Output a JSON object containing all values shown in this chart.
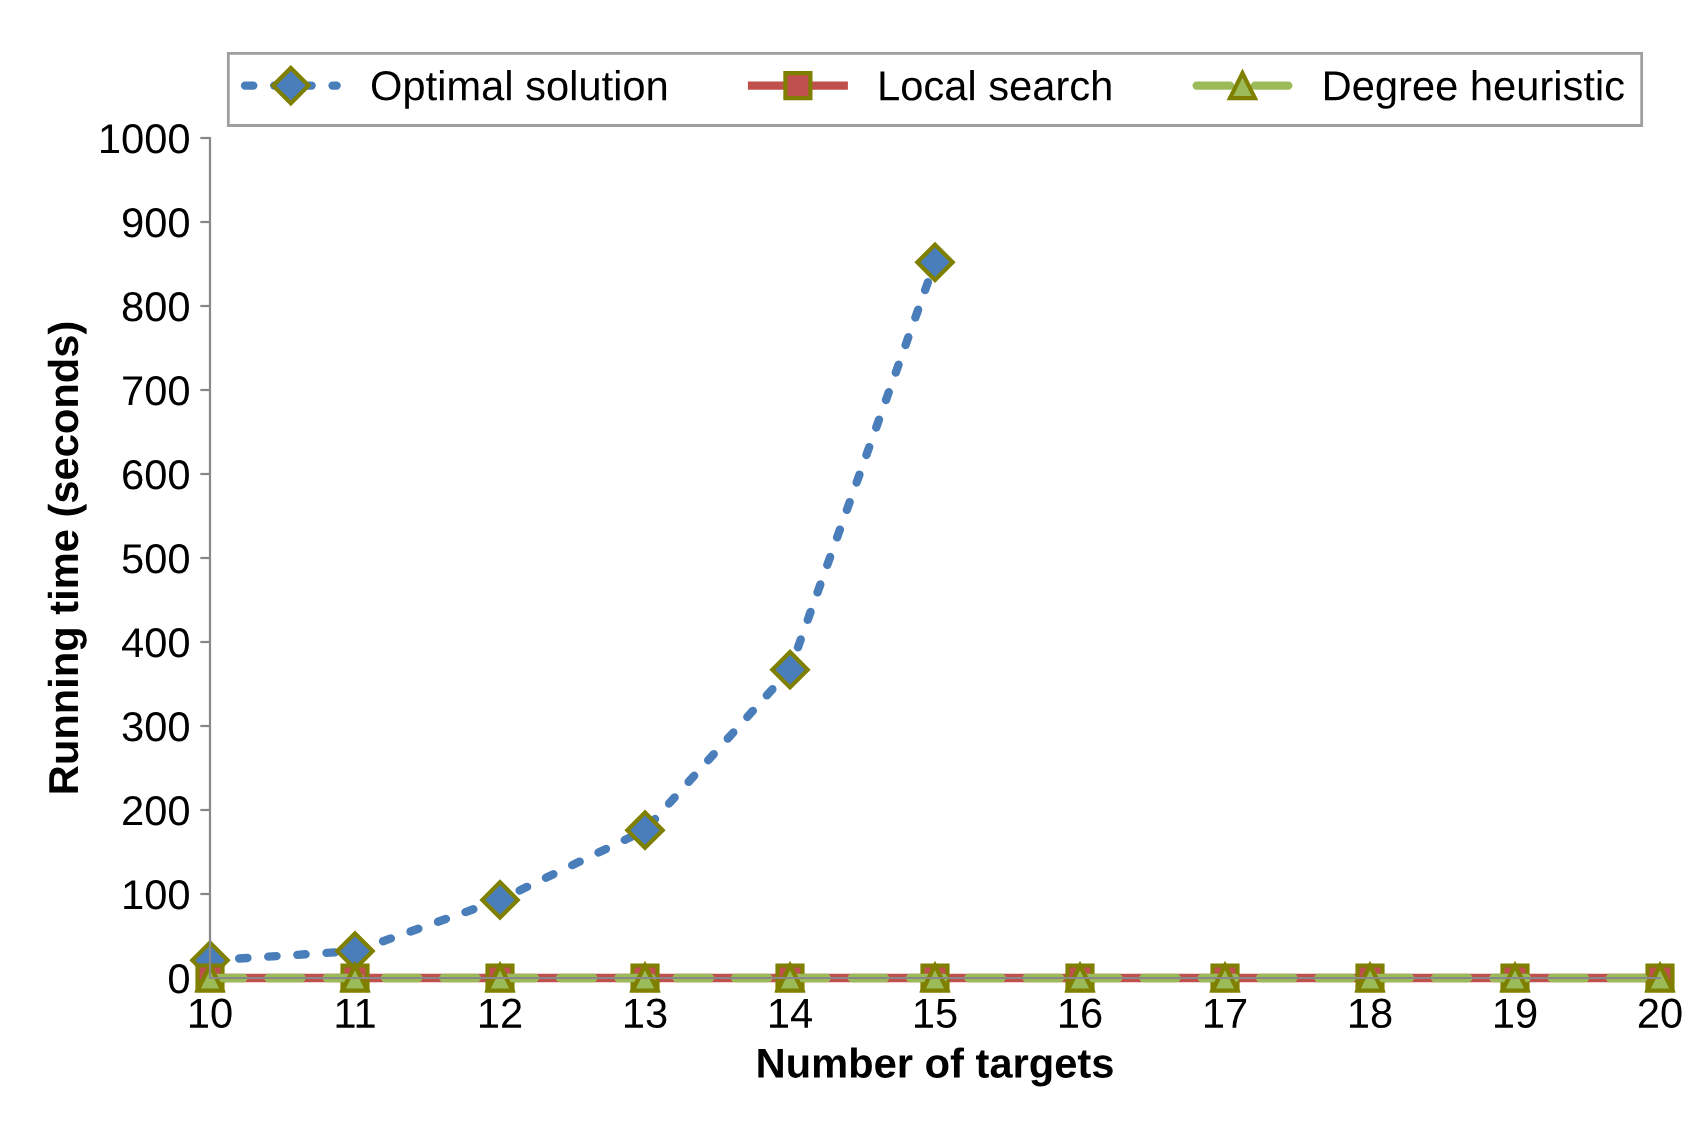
{
  "chart_data": {
    "type": "line",
    "xlabel": "Number of targets",
    "ylabel": "Running time (seconds)",
    "x": [
      10,
      11,
      12,
      13,
      14,
      15,
      16,
      17,
      18,
      19,
      20
    ],
    "series": [
      {
        "name": "Optimal solution",
        "color": "#4a7ebb",
        "marker": "diamond",
        "line_style": "dotted",
        "values": [
          21,
          32,
          93,
          176,
          367,
          852,
          null,
          null,
          null,
          null,
          null
        ]
      },
      {
        "name": "Local search",
        "color": "#c0504d",
        "marker": "square",
        "line_style": "solid",
        "values": [
          0,
          0,
          0,
          0,
          0,
          0,
          0,
          0,
          0,
          0,
          0
        ]
      },
      {
        "name": "Degree heuristic",
        "color": "#9bbb59",
        "marker": "triangle",
        "line_style": "dashed",
        "values": [
          0,
          0,
          0,
          0,
          0,
          0,
          0,
          0,
          0,
          0,
          0
        ]
      }
    ],
    "xlim": [
      10,
      20
    ],
    "xticks": [
      10,
      11,
      12,
      13,
      14,
      15,
      16,
      17,
      18,
      19,
      20
    ],
    "ylim": [
      0,
      1000
    ],
    "yticks": [
      0,
      100,
      200,
      300,
      400,
      500,
      600,
      700,
      800,
      900,
      1000
    ],
    "grid": false,
    "legend": "top"
  }
}
